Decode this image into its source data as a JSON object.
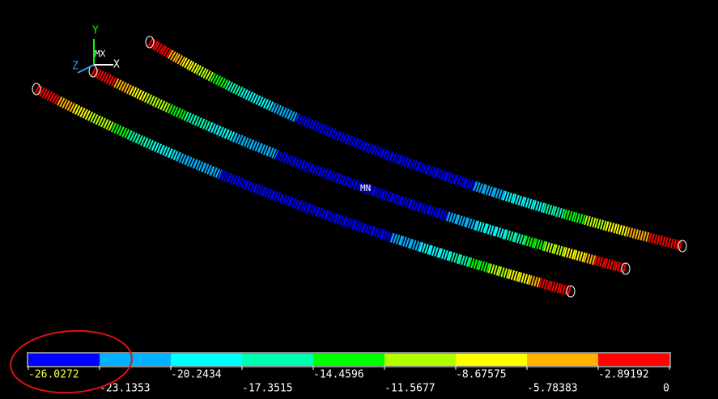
{
  "viewport": {
    "triad": {
      "y": "Y",
      "x": "X",
      "z": "Z"
    },
    "max_label": "MX",
    "min_label": "MN"
  },
  "legend": {
    "colors": [
      "#0000ff",
      "#00b2ff",
      "#00ffff",
      "#00ffb2",
      "#00ff00",
      "#b2ff00",
      "#ffff00",
      "#ffb200",
      "#ff0000"
    ],
    "values": [
      "-26.0272",
      "-23.1353",
      "-20.2434",
      "-17.3515",
      "-14.4596",
      "-11.5677",
      "-8.67575",
      "-5.78383",
      "-2.89192",
      "0"
    ]
  }
}
